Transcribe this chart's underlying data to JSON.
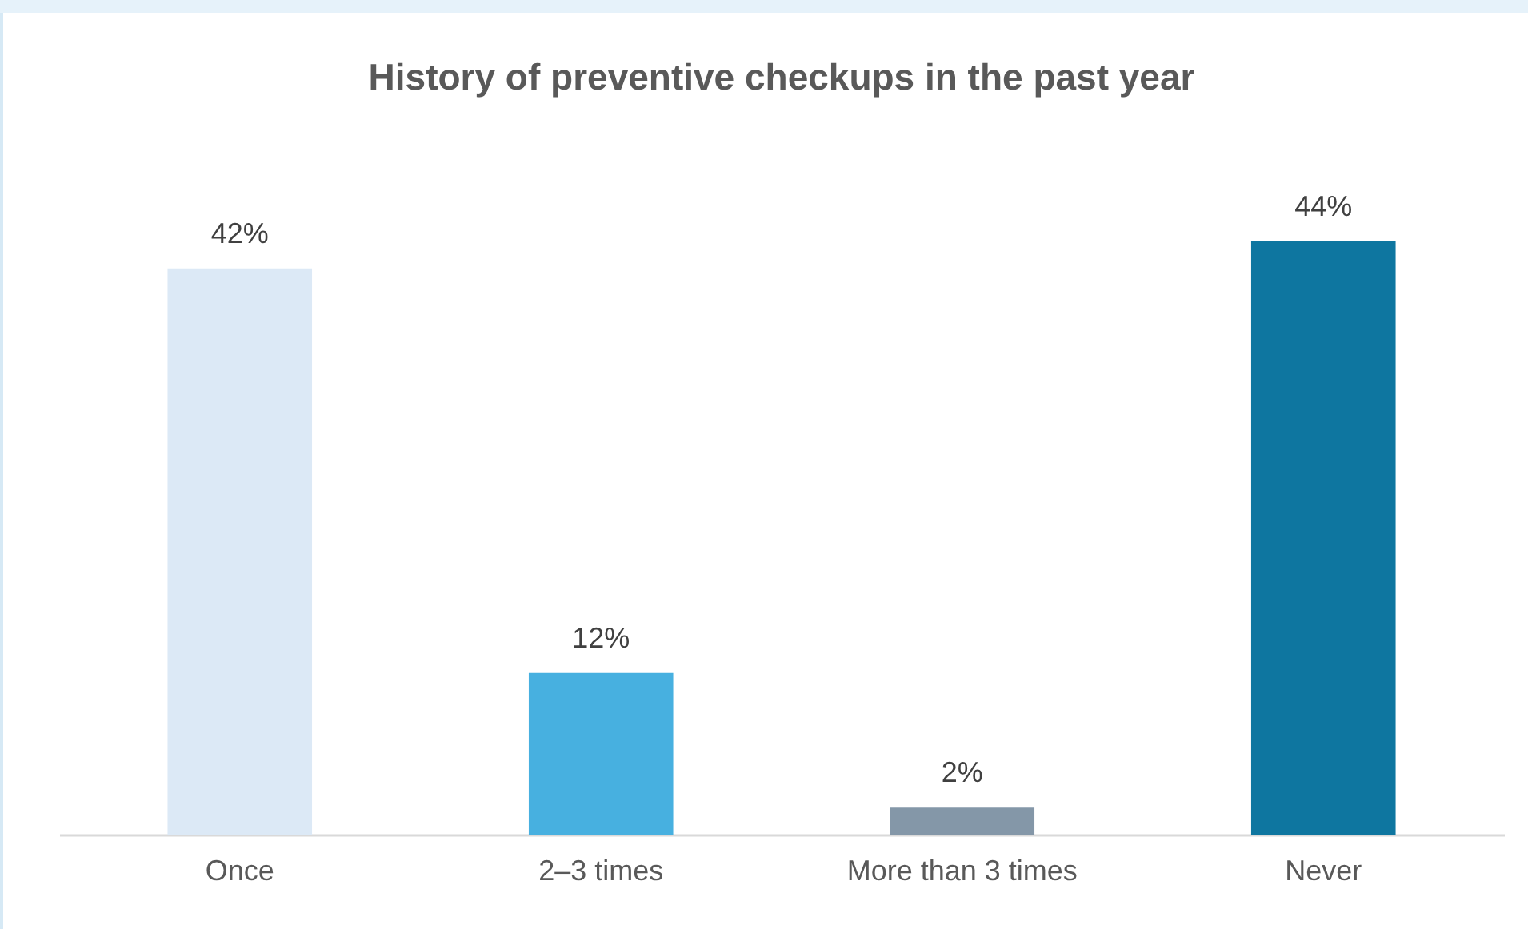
{
  "chart_data": {
    "type": "bar",
    "title": "History of preventive checkups in the past year",
    "categories": [
      "Once",
      "2–3 times",
      "More than 3 times",
      "Never"
    ],
    "values": [
      42,
      12,
      2,
      44
    ],
    "colors": [
      "#dce9f6",
      "#47b0e0",
      "#8497a8",
      "#0e76a0"
    ],
    "value_labels": [
      "42%",
      "12%",
      "2%",
      "44%"
    ]
  }
}
